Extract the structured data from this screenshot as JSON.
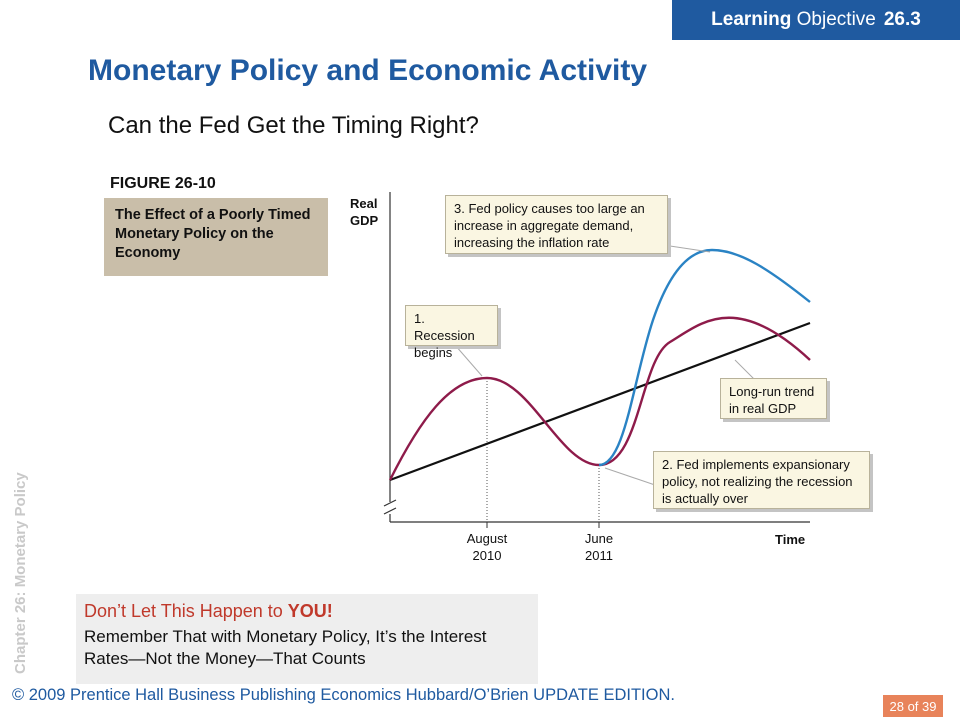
{
  "header": {
    "lo_bold": "Learning",
    "lo_rest": "Objective",
    "lo_number": "26.3"
  },
  "title": "Monetary Policy and Economic Activity",
  "subtitle": "Can the Fed Get the Timing Right?",
  "side_text": "Chapter 26:  Monetary Policy",
  "figure": {
    "label": "FIGURE 26-10",
    "caption": "The Effect of a Poorly Timed Monetary Policy on the Economy",
    "y_axis_line1": "Real",
    "y_axis_line2": "GDP",
    "x_axis": "Time",
    "tick1_line1": "August",
    "tick1_line2": "2010",
    "tick2_line1": "June",
    "tick2_line2": "2011",
    "callout1": "1. Recession begins",
    "callout2": "2. Fed implements expansionary policy, not realizing the recession is actually over",
    "callout3": "3. Fed policy causes too large an increase in aggregate demand, increasing the inflation rate",
    "callout_trend": "Long-run trend in real GDP",
    "colors": {
      "actual_path": "#8e1b4a",
      "policy_path": "#2a83c4",
      "trend": "#111111"
    }
  },
  "bottom_box": {
    "head_pre": "Don’t Let This Happen to ",
    "head_bold": "YOU!",
    "body": "Remember That with Monetary Policy, It’s the Interest Rates—Not the Money—That Counts"
  },
  "footer": "© 2009 Prentice Hall Business Publishing Economics  Hubbard/O’Brien UPDATE EDITION.",
  "page": "28 of 39"
}
